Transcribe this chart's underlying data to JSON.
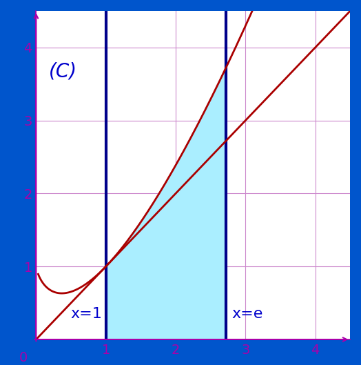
{
  "title": "(C)",
  "x_min": 0,
  "x_max": 4.5,
  "y_min": 0,
  "y_max": 4.5,
  "x_ticks": [
    0,
    1,
    2,
    3,
    4
  ],
  "y_ticks": [
    1,
    2,
    3,
    4
  ],
  "x1_label": "x=1",
  "x2_label": "x=e",
  "x1_val": 1.0,
  "x2_val": 2.71828,
  "background_color": "#ffffff",
  "border_color": "#0055cc",
  "grid_color": "#cc88cc",
  "axis_color": "#aa00aa",
  "curve_color": "#aa0000",
  "shaded_color": "#aaeeff",
  "shaded_alpha": 1.0,
  "vline_color": "#00008b",
  "label_color": "#0000cc",
  "title_color": "#0000cc",
  "title_fontsize": 20,
  "label_fontsize": 16,
  "border_width": 10
}
